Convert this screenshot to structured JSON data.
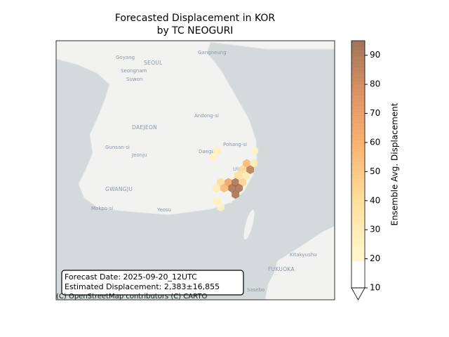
{
  "chart_data": {
    "type": "hexbin",
    "title": [
      "Forecasted Displacement in KOR",
      "by TC NEOGURI"
    ],
    "colorbar_label": "Ensemble Avg. Displacement",
    "xlim": [
      124.76,
      131.92
    ],
    "ylim": [
      33.06,
      37.98
    ],
    "clim": [
      10,
      95
    ],
    "cticks": [
      10,
      20,
      30,
      40,
      50,
      60,
      70,
      80,
      90
    ],
    "colormap": [
      [
        10,
        "#ffffff"
      ],
      [
        19,
        "#ffffff"
      ],
      [
        19,
        "#fff8c8"
      ],
      [
        40,
        "#fed98e"
      ],
      [
        60,
        "#f5a45a"
      ],
      [
        75,
        "#d9844c"
      ],
      [
        95,
        "#8c5a3c"
      ]
    ],
    "hexes": {
      "x": [
        128.9,
        128.8,
        129.86,
        129.66,
        129.84,
        129.75,
        129.55,
        129.44,
        129.64,
        128.99,
        129.19,
        129.37,
        129.55,
        128.89,
        129.08,
        129.28,
        129.46,
        129.37,
        128.9,
        128.99
      ],
      "y": [
        35.89,
        35.77,
        35.89,
        35.65,
        35.65,
        35.53,
        35.53,
        35.42,
        35.41,
        35.29,
        35.29,
        35.29,
        35.29,
        35.18,
        35.18,
        35.18,
        35.18,
        35.06,
        34.93,
        34.82
      ],
      "values": [
        25,
        22,
        22,
        55,
        28,
        85,
        40,
        38,
        30,
        40,
        65,
        90,
        45,
        28,
        55,
        90,
        90,
        90,
        25,
        22
      ]
    }
  },
  "map_labels": [
    "Goyang",
    "SEOUL",
    "Seongnam",
    "Suwon",
    "Gangneung",
    "Andong-si",
    "DAEJEON",
    "Gunsan-si",
    "Jeonju",
    "Daegu",
    "Pohang-si",
    "Ulsan",
    "GWANGJU",
    "Mokpo-si",
    "Yeosu",
    "Kitakyushu",
    "FUKUOKA",
    "Sasebo"
  ],
  "info": [
    "Forecast Date: 2025-09-20_12UTC",
    "Estimated Displacement: 2,383±16,855"
  ],
  "attribution": "(C) OpenStreetMap contributors (C) CARTO"
}
